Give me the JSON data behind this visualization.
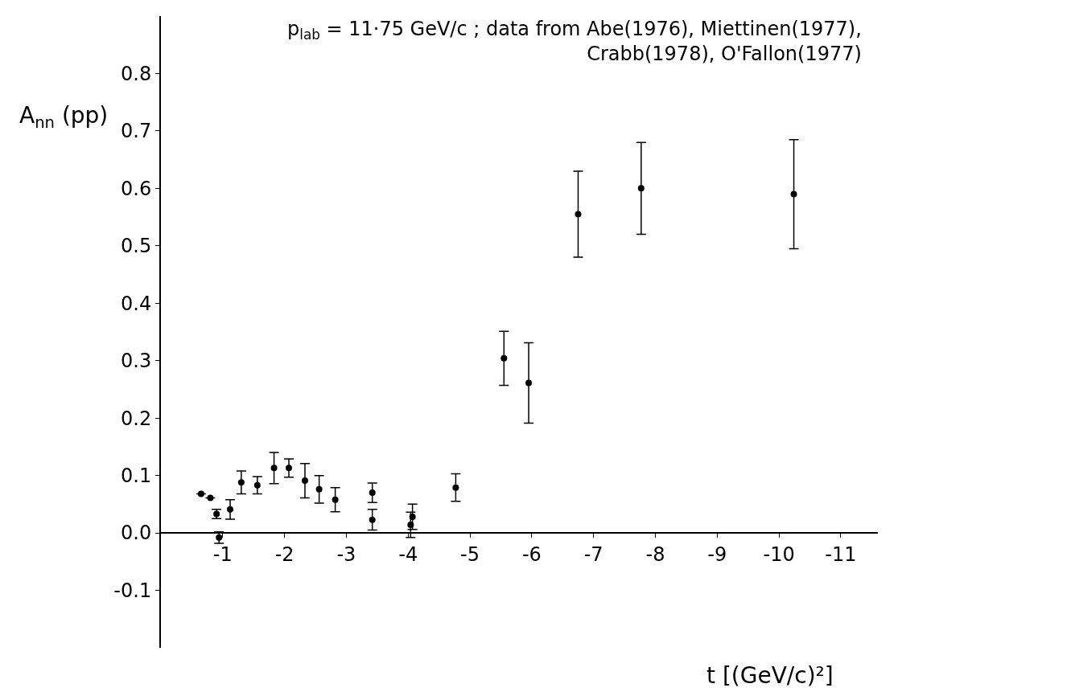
{
  "chart_data": {
    "type": "scatter",
    "ylabel": "A$_{nn}$ (pp)",
    "xlabel": "t [(GeV/c)²]",
    "annotations": [
      "p$_{lab}$ = 11·75 GeV/c ; data from Abe(1976), Miettinen(1977),\nCrabb(1978), O'Fallon(1977)"
    ],
    "series": [
      {
        "color": "#000000",
        "x": [
          -0.65,
          -0.8,
          -0.9,
          -0.94,
          -1.12,
          -1.3,
          -1.56,
          -1.83,
          -2.07,
          -2.33,
          -2.56,
          -2.82,
          -3.42,
          -3.42,
          -4.04,
          -4.07,
          -4.77,
          -5.55,
          -5.95,
          -6.75,
          -7.77,
          -10.24
        ],
        "values": [
          0.068,
          0.061,
          0.033,
          -0.008,
          0.041,
          0.088,
          0.083,
          0.113,
          0.113,
          0.091,
          0.076,
          0.058,
          0.07,
          0.023,
          0.014,
          0.028,
          0.079,
          0.304,
          0.261,
          0.555,
          0.6,
          0.59
        ],
        "errors": [
          null,
          null,
          0.008,
          0.01,
          0.017,
          0.02,
          0.015,
          0.027,
          0.016,
          0.03,
          0.024,
          0.021,
          0.017,
          0.018,
          0.022,
          0.022,
          0.024,
          0.047,
          0.07,
          0.075,
          0.08,
          0.095
        ]
      }
    ],
    "marker": "circle",
    "xlim": [
      0,
      -11.6
    ],
    "xticks": [
      -1,
      -2,
      -3,
      -4,
      -5,
      -6,
      -7,
      -8,
      -9,
      -10,
      -11
    ],
    "ylim": [
      -0.2,
      0.9
    ],
    "yticks": [
      {
        "value": -0.1,
        "label": "-0.1"
      },
      {
        "value": 0,
        "label": "0.0"
      },
      0.1,
      0.2,
      0.3,
      0.4,
      0.5,
      0.6,
      0.7,
      0.8
    ]
  }
}
